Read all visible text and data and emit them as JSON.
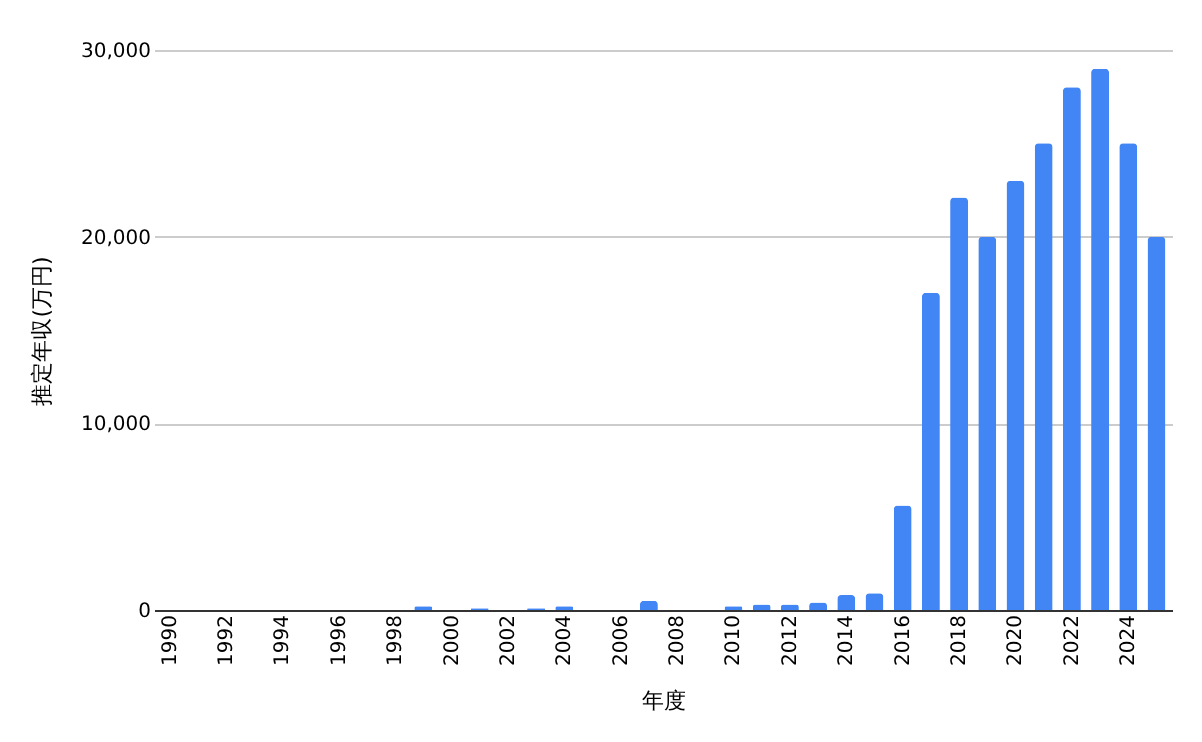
{
  "chart_data": {
    "type": "bar",
    "xlabel": "年度",
    "ylabel": "推定年収(万円)",
    "categories": [
      "1990",
      null,
      "1992",
      null,
      "1994",
      null,
      "1996",
      null,
      "1998",
      null,
      "2000",
      null,
      "2002",
      null,
      "2004",
      null,
      "2006",
      null,
      "2008",
      null,
      "2010",
      null,
      "2012",
      null,
      "2014",
      null,
      "2016",
      null,
      "2018",
      null,
      "2020",
      null,
      "2022",
      null,
      "2024",
      null
    ],
    "values": [
      0,
      0,
      0,
      0,
      0,
      0,
      0,
      0,
      0,
      200,
      0,
      100,
      0,
      100,
      200,
      0,
      0,
      500,
      0,
      0,
      200,
      300,
      300,
      400,
      800,
      900,
      5600,
      17000,
      22100,
      20000,
      23000,
      25000,
      28000,
      29000,
      25000,
      20000
    ],
    "color": "#4285f4",
    "ylim": [
      0,
      30000
    ],
    "yticks": [
      0,
      {
        "value": 10000,
        "label": "10,000"
      },
      {
        "value": 20000,
        "label": "20,000"
      },
      {
        "value": 30000,
        "label": "30,000"
      }
    ],
    "grid": "y"
  }
}
